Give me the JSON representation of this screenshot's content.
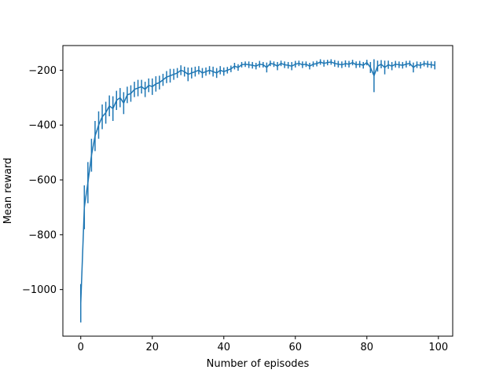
{
  "chart_data": {
    "type": "line",
    "title": "",
    "xlabel": "Number of episodes",
    "ylabel": "Mean reward",
    "xlim": [
      -5,
      104
    ],
    "ylim": [
      -1170,
      -110
    ],
    "xticks": [
      0,
      20,
      40,
      60,
      80,
      100
    ],
    "yticks": [
      -1000,
      -800,
      -600,
      -400,
      -200
    ],
    "grid": false,
    "legend": "none",
    "line_color": "#1f77b4",
    "series": [
      {
        "x": [
          0,
          1,
          2,
          3,
          4,
          5,
          6,
          7,
          8,
          9,
          10,
          11,
          12,
          13,
          14,
          15,
          16,
          17,
          18,
          19,
          20,
          21,
          22,
          23,
          24,
          25,
          26,
          27,
          28,
          29,
          30,
          31,
          32,
          33,
          34,
          35,
          36,
          37,
          38,
          39,
          40,
          41,
          42,
          43,
          44,
          45,
          46,
          47,
          48,
          49,
          50,
          51,
          52,
          53,
          54,
          55,
          56,
          57,
          58,
          59,
          60,
          61,
          62,
          63,
          64,
          65,
          66,
          67,
          68,
          69,
          70,
          71,
          72,
          73,
          74,
          75,
          76,
          77,
          78,
          79,
          80,
          81,
          82,
          83,
          84,
          85,
          86,
          87,
          88,
          89,
          90,
          91,
          92,
          93,
          94,
          95,
          96,
          97,
          98,
          99
        ],
        "values": [
          -1050,
          -700,
          -610,
          -510,
          -440,
          -400,
          -370,
          -355,
          -330,
          -340,
          -310,
          -300,
          -320,
          -290,
          -285,
          -270,
          -265,
          -260,
          -270,
          -255,
          -260,
          -250,
          -245,
          -235,
          -225,
          -220,
          -215,
          -210,
          -200,
          -205,
          -215,
          -210,
          -205,
          -200,
          -210,
          -205,
          -200,
          -205,
          -210,
          -200,
          -205,
          -200,
          -195,
          -185,
          -190,
          -180,
          -178,
          -180,
          -182,
          -185,
          -178,
          -180,
          -190,
          -175,
          -178,
          -185,
          -175,
          -180,
          -182,
          -185,
          -178,
          -175,
          -180,
          -178,
          -185,
          -178,
          -176,
          -170,
          -175,
          -172,
          -170,
          -175,
          -178,
          -180,
          -176,
          -178,
          -172,
          -180,
          -178,
          -182,
          -172,
          -190,
          -220,
          -185,
          -178,
          -190,
          -180,
          -185,
          -178,
          -180,
          -182,
          -178,
          -175,
          -190,
          -180,
          -182,
          -176,
          -178,
          -180,
          -182
        ],
        "errors": [
          70,
          80,
          75,
          60,
          55,
          50,
          45,
          40,
          38,
          45,
          35,
          35,
          40,
          30,
          30,
          28,
          30,
          25,
          28,
          25,
          30,
          28,
          25,
          22,
          22,
          25,
          20,
          18,
          18,
          18,
          25,
          20,
          18,
          15,
          18,
          15,
          15,
          18,
          18,
          15,
          15,
          12,
          12,
          12,
          12,
          10,
          10,
          12,
          12,
          12,
          12,
          10,
          18,
          10,
          10,
          15,
          10,
          12,
          12,
          15,
          12,
          10,
          12,
          10,
          12,
          10,
          10,
          10,
          12,
          10,
          10,
          12,
          12,
          12,
          12,
          12,
          10,
          12,
          12,
          12,
          10,
          20,
          60,
          20,
          15,
          25,
          15,
          15,
          12,
          12,
          12,
          12,
          10,
          18,
          12,
          12,
          10,
          12,
          12,
          15
        ]
      }
    ]
  }
}
